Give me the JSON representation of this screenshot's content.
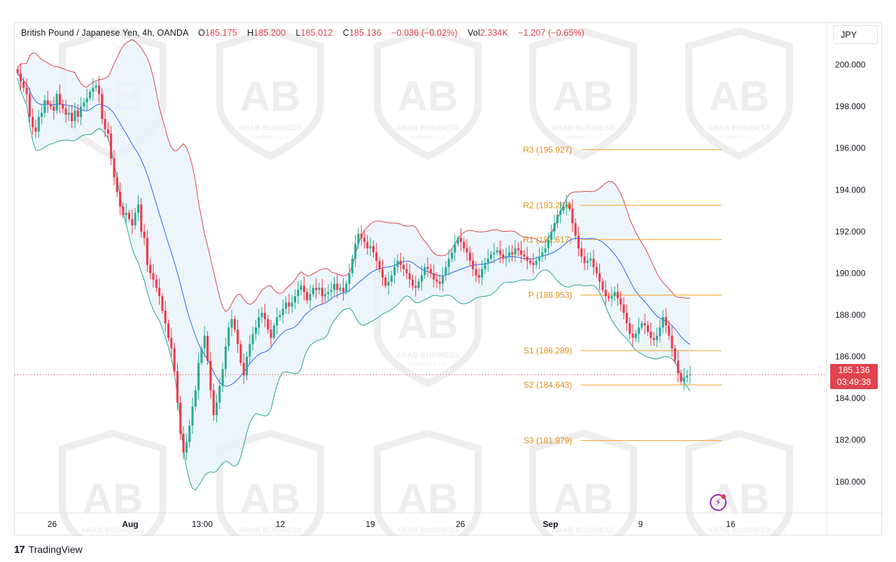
{
  "legend": {
    "symbol": "British Pound / Japanese Yen, 4h, OANDA",
    "o_key": "O",
    "o_val": "185.175",
    "h_key": "H",
    "h_val": "185.200",
    "l_key": "L",
    "l_val": "185.012",
    "c_key": "C",
    "c_val": "185.136",
    "change": "−0.036 (−0.02%)",
    "vol_key": "Vol",
    "vol_val": "2.334K",
    "vol_change": "−1.207 (−0.65%)"
  },
  "currency": "JPY",
  "price_tag": {
    "price": "185.136",
    "countdown": "03:49:38"
  },
  "footer": {
    "brand": "TradingView",
    "logo": "17"
  },
  "icons": {
    "alert": "lightning-alert-icon"
  },
  "colors": {
    "bull": "#22ab94",
    "bear": "#f23645",
    "upper_band": "#e0434b",
    "lower_band": "#26a69a",
    "basis": "#2962ff",
    "band_fill": "#e8f2fb",
    "pivot": "#f0a020",
    "pivot_text": "#e09018",
    "watermark": "#cfcfcf"
  },
  "watermark": {
    "brand": "ARAB BUSINESS",
    "sub": "Academy L.L.C",
    "letters": "AB"
  },
  "chart_data": {
    "type": "candlestick",
    "price_range": [
      178.5,
      202.0
    ],
    "price_ticks": [
      "200.000",
      "198.000",
      "196.000",
      "194.000",
      "192.000",
      "190.000",
      "188.000",
      "186.000",
      "184.000",
      "182.000",
      "180.000"
    ],
    "time_labels": [
      {
        "label": "26",
        "bold": false,
        "t": 12
      },
      {
        "label": "Aug",
        "bold": true,
        "t": 38
      },
      {
        "label": "13:00",
        "bold": false,
        "t": 62
      },
      {
        "label": "12",
        "bold": false,
        "t": 88
      },
      {
        "label": "19",
        "bold": false,
        "t": 118
      },
      {
        "label": "26",
        "bold": false,
        "t": 148
      },
      {
        "label": "Sep",
        "bold": true,
        "t": 178
      },
      {
        "label": "9",
        "bold": false,
        "t": 208
      },
      {
        "label": "16",
        "bold": false,
        "t": 238
      }
    ],
    "time_range": [
      0,
      270
    ],
    "pivot_levels": [
      {
        "label": "R3 (195.927)",
        "value": 195.927
      },
      {
        "label": "R2 (193.263)",
        "value": 193.263
      },
      {
        "label": "R1 (191.617)",
        "value": 191.617
      },
      {
        "label": "P (188.953)",
        "value": 188.953
      },
      {
        "label": "S1 (186.289)",
        "value": 186.289
      },
      {
        "label": "S2 (184.643)",
        "value": 184.643
      },
      {
        "label": "S3 (181.979)",
        "value": 181.979
      }
    ],
    "pivot_span": [
      188,
      235
    ],
    "last_price": 185.136,
    "closes": [
      199.6,
      199.2,
      198.9,
      198.6,
      197.5,
      197.0,
      196.8,
      197.5,
      197.7,
      198.3,
      198.1,
      198.0,
      197.8,
      198.6,
      198.1,
      197.9,
      197.6,
      197.7,
      197.3,
      197.8,
      197.5,
      198.0,
      198.2,
      198.4,
      198.7,
      198.9,
      199.0,
      198.6,
      197.4,
      196.9,
      196.7,
      195.5,
      194.6,
      193.9,
      193.2,
      192.8,
      192.9,
      192.6,
      192.3,
      192.9,
      193.3,
      192.0,
      191.7,
      190.4,
      190.0,
      189.7,
      189.3,
      188.9,
      188.2,
      187.6,
      186.9,
      186.4,
      185.3,
      183.8,
      182.3,
      181.4,
      181.9,
      182.7,
      183.6,
      184.4,
      185.7,
      186.4,
      187.0,
      185.8,
      184.4,
      183.2,
      183.8,
      184.6,
      185.4,
      186.5,
      187.4,
      187.8,
      187.3,
      186.6,
      185.7,
      185.1,
      186.0,
      186.6,
      187.1,
      187.4,
      187.9,
      188.1,
      187.8,
      187.3,
      186.9,
      187.5,
      187.9,
      188.0,
      188.3,
      188.6,
      188.4,
      188.6,
      188.9,
      189.2,
      189.4,
      189.1,
      188.7,
      189.0,
      189.3,
      189.2,
      189.3,
      188.9,
      189.0,
      189.1,
      189.2,
      189.5,
      189.2,
      189.3,
      189.1,
      189.5,
      190.0,
      190.7,
      191.4,
      191.9,
      191.7,
      191.5,
      191.2,
      191.3,
      191.0,
      190.6,
      190.2,
      189.8,
      189.4,
      189.6,
      189.9,
      190.3,
      190.6,
      190.4,
      190.2,
      190.0,
      189.7,
      189.4,
      189.3,
      189.6,
      189.9,
      190.3,
      190.2,
      190.0,
      189.7,
      189.6,
      189.5,
      189.9,
      190.3,
      190.7,
      191.0,
      191.4,
      191.7,
      191.5,
      191.2,
      191.0,
      190.6,
      190.2,
      189.9,
      189.8,
      190.2,
      190.5,
      190.7,
      190.9,
      191.0,
      191.1,
      190.9,
      190.7,
      190.8,
      191.0,
      190.9,
      191.2,
      191.1,
      190.9,
      190.8,
      190.6,
      190.5,
      190.4,
      190.6,
      190.8,
      191.0,
      191.2,
      191.6,
      192.0,
      192.4,
      192.8,
      193.0,
      193.2,
      193.3,
      193.1,
      192.4,
      191.8,
      191.2,
      190.8,
      190.5,
      190.6,
      190.7,
      190.3,
      190.0,
      189.6,
      189.2,
      188.9,
      188.8,
      188.9,
      189.1,
      188.8,
      188.5,
      188.1,
      187.6,
      187.1,
      186.9,
      187.1,
      187.4,
      187.6,
      187.5,
      187.2,
      186.9,
      186.8,
      187.0,
      187.4,
      187.9,
      187.5,
      187.0,
      186.4,
      185.8,
      185.2,
      184.8,
      185.0,
      185.1,
      185.14
    ]
  }
}
